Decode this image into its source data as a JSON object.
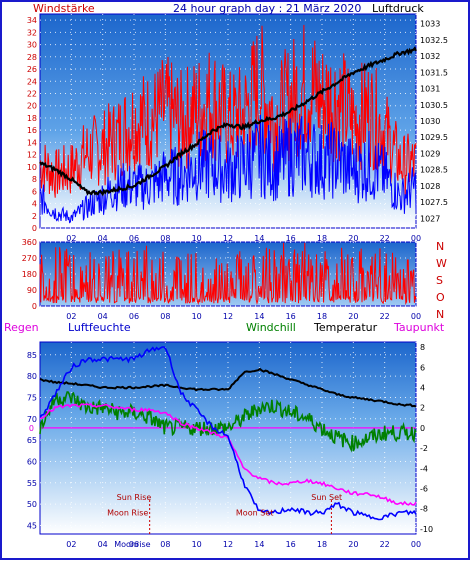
{
  "header": {
    "left_title": "Windstärke",
    "center_title": "24 hour graph day : 21 März 2020",
    "right_title": "Luftdruck"
  },
  "colors": {
    "frame": "#1a1acc",
    "plot_bg_top": "#1f6fd0",
    "plot_bg_bottom": "#ffffff",
    "wind_gust": "#ff0000",
    "wind_avg": "#0000ff",
    "pressure": "#000000",
    "direction": "#ff0000",
    "temperature": "#000000",
    "windchill": "#008000",
    "dewpoint": "#ff00ff",
    "humidity": "#0000ff",
    "axis_red": "#cc0000",
    "axis_blue": "#0000aa"
  },
  "chart_data": [
    {
      "type": "line",
      "title": "24 hour graph day : 21 März 2020",
      "x_ticks": [
        "02",
        "04",
        "06",
        "08",
        "10",
        "12",
        "14",
        "16",
        "18",
        "20",
        "22",
        "00"
      ],
      "left_axis": {
        "label": "Windstärke",
        "ticks": [
          0,
          2,
          4,
          6,
          8,
          10,
          12,
          14,
          16,
          18,
          20,
          22,
          24,
          26,
          28,
          30,
          32,
          34
        ],
        "range": [
          0,
          35
        ]
      },
      "right_axis": {
        "label": "Luftdruck",
        "ticks": [
          1027,
          1027.5,
          1028,
          1028.5,
          1029,
          1029.5,
          1030,
          1030.5,
          1031,
          1031.5,
          1032,
          1032.5,
          1033
        ],
        "range": [
          1026.7,
          1033.3
        ]
      },
      "series": [
        {
          "name": "Windstärke",
          "hours": [
            0,
            1,
            2,
            3,
            4,
            5,
            6,
            7,
            8,
            9,
            10,
            11,
            12,
            13,
            14,
            15,
            16,
            17,
            18,
            19,
            20,
            21,
            22,
            23,
            24
          ],
          "values": [
            12,
            10,
            11,
            14,
            15,
            17,
            20,
            20,
            22,
            20,
            22,
            24,
            20,
            21,
            27,
            20,
            24,
            27,
            24,
            24,
            20,
            22,
            18,
            12,
            12
          ]
        },
        {
          "name": "Windstärke (mittel)",
          "hours": [
            0,
            1,
            2,
            3,
            4,
            5,
            6,
            7,
            8,
            9,
            10,
            11,
            12,
            13,
            14,
            15,
            16,
            17,
            18,
            19,
            20,
            21,
            22,
            23,
            24
          ],
          "values": [
            6,
            3,
            2,
            4,
            6,
            8,
            8,
            8,
            10,
            10,
            12,
            12,
            11,
            12,
            14,
            12,
            14,
            14,
            13,
            13,
            11,
            12,
            10,
            6,
            8
          ]
        },
        {
          "name": "Luftdruck",
          "hours": [
            0,
            1,
            2,
            3,
            4,
            5,
            6,
            7,
            8,
            9,
            10,
            11,
            12,
            13,
            14,
            15,
            16,
            17,
            18,
            19,
            20,
            21,
            22,
            23,
            24
          ],
          "values": [
            1028.7,
            1028.5,
            1028.2,
            1027.8,
            1027.8,
            1027.9,
            1028.0,
            1028.3,
            1028.6,
            1029.0,
            1029.3,
            1029.7,
            1029.9,
            1029.8,
            1030.0,
            1030.1,
            1030.3,
            1030.6,
            1030.9,
            1031.2,
            1031.5,
            1031.7,
            1031.9,
            1032.1,
            1032.2
          ]
        }
      ]
    },
    {
      "type": "line",
      "x_ticks": [
        "02",
        "04",
        "06",
        "08",
        "10",
        "12",
        "14",
        "16",
        "18",
        "20",
        "22",
        "00"
      ],
      "left_axis": {
        "ticks": [
          0,
          90,
          180,
          270,
          360
        ],
        "range": [
          0,
          360
        ]
      },
      "right_labels": [
        "N",
        "W",
        "S",
        "O",
        "N"
      ],
      "series": [
        {
          "name": "Windrichtung",
          "hours": [
            0,
            2,
            4,
            6,
            8,
            10,
            12,
            14,
            16,
            18,
            20,
            22,
            24
          ],
          "values": [
            120,
            140,
            100,
            150,
            130,
            90,
            110,
            120,
            160,
            140,
            130,
            120,
            60
          ]
        }
      ]
    },
    {
      "type": "line",
      "legend": [
        "Regen",
        "Luftfeuchte",
        "Windchill",
        "Temperatur",
        "Taupunkt"
      ],
      "x_ticks": [
        "02",
        "04",
        "06",
        "08",
        "10",
        "12",
        "14",
        "16",
        "18",
        "20",
        "22",
        "00"
      ],
      "left_axis": {
        "label": "Luftfeuchte",
        "ticks": [
          45,
          50,
          55,
          60,
          65,
          70,
          75,
          80,
          85
        ],
        "range": [
          43,
          88
        ]
      },
      "right_axis": {
        "ticks": [
          -10,
          -8,
          -6,
          -4,
          -2,
          0,
          2,
          4,
          6,
          8
        ],
        "range": [
          -10.5,
          8.5
        ]
      },
      "zero_label": "0",
      "series": [
        {
          "name": "Temperatur",
          "hours": [
            0,
            1,
            2,
            3,
            4,
            5,
            6,
            7,
            8,
            9,
            10,
            11,
            12,
            13,
            14,
            15,
            16,
            17,
            18,
            19,
            20,
            21,
            22,
            23,
            24
          ],
          "values": [
            4.8,
            4.5,
            4.4,
            4.2,
            4.0,
            4.0,
            4.0,
            4.1,
            4.2,
            4.0,
            3.8,
            3.8,
            3.8,
            5.5,
            5.8,
            5.3,
            4.8,
            4.3,
            3.8,
            3.3,
            3.0,
            2.8,
            2.6,
            2.3,
            2.2
          ]
        },
        {
          "name": "Windchill",
          "hours": [
            0,
            1,
            2,
            3,
            4,
            5,
            6,
            7,
            8,
            9,
            10,
            11,
            12,
            13,
            14,
            15,
            16,
            17,
            18,
            19,
            20,
            21,
            22,
            23,
            24
          ],
          "values": [
            0,
            3,
            3,
            2,
            2,
            1.5,
            1.5,
            1,
            0,
            0,
            0,
            0,
            0,
            1,
            2,
            2.2,
            1.5,
            1,
            0,
            -1,
            -1.5,
            -1,
            -0.5,
            -0.5,
            -0.5
          ]
        },
        {
          "name": "Taupunkt",
          "hours": [
            0,
            1,
            2,
            3,
            4,
            5,
            6,
            7,
            8,
            9,
            10,
            11,
            12,
            13,
            14,
            15,
            16,
            17,
            18,
            19,
            20,
            21,
            22,
            23,
            24
          ],
          "values": [
            1,
            2,
            2.2,
            2.2,
            2.2,
            2,
            1.8,
            1.8,
            1.5,
            0.5,
            0,
            -0.5,
            -1,
            -4,
            -5,
            -5.5,
            -5.5,
            -5.2,
            -5.5,
            -6,
            -6.5,
            -6.5,
            -7,
            -7.5,
            -7.5
          ]
        },
        {
          "name": "Luftfeuchte",
          "hours": [
            0,
            1,
            2,
            3,
            4,
            5,
            6,
            7,
            8,
            9,
            10,
            11,
            12,
            13,
            14,
            15,
            16,
            17,
            18,
            19,
            20,
            21,
            22,
            23,
            24
          ],
          "values": [
            70,
            76,
            82,
            84,
            84,
            84,
            84,
            86,
            87,
            76,
            72,
            68,
            66,
            55,
            48,
            48,
            49,
            48,
            48,
            50,
            48,
            47,
            47,
            48,
            48
          ]
        }
      ],
      "annotations": [
        {
          "text": "Sun Rise",
          "hour": 6.0,
          "value": 51
        },
        {
          "text": "Moon Rise",
          "hour": 5.6,
          "value": 47.3
        },
        {
          "text": "Sun Set",
          "hour": 18.3,
          "value": 51
        },
        {
          "text": "Moon Set",
          "hour": 13.7,
          "value": 47.3
        }
      ],
      "marker_lines": [
        {
          "hour": 7.0
        },
        {
          "hour": 18.6
        }
      ],
      "x_extra_label": {
        "text": "Moonrise",
        "hour": 5.9
      }
    }
  ]
}
